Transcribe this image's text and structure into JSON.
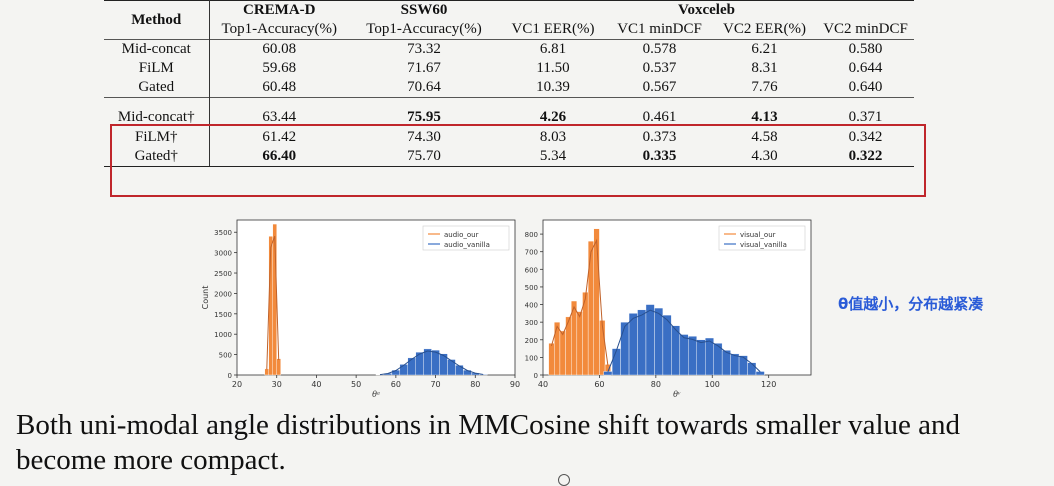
{
  "table": {
    "header_method": "Method",
    "groups": [
      "CREMA-D",
      "SSW60",
      "Voxceleb"
    ],
    "subheaders": [
      "Top1-Accuracy(%)",
      "Top1-Accuracy(%)",
      "VC1 EER(%)",
      "VC1 minDCF",
      "VC2 EER(%)",
      "VC2 minDCF"
    ],
    "rows": [
      {
        "method": "Mid-concat",
        "values": [
          "60.08",
          "73.32",
          "6.81",
          "0.578",
          "6.21",
          "0.580"
        ],
        "bold": [
          false,
          false,
          false,
          false,
          false,
          false
        ]
      },
      {
        "method": "FiLM",
        "values": [
          "59.68",
          "71.67",
          "11.50",
          "0.537",
          "8.31",
          "0.644"
        ],
        "bold": [
          false,
          false,
          false,
          false,
          false,
          false
        ]
      },
      {
        "method": "Gated",
        "values": [
          "60.48",
          "70.64",
          "10.39",
          "0.567",
          "7.76",
          "0.640"
        ],
        "bold": [
          false,
          false,
          false,
          false,
          false,
          false
        ]
      },
      {
        "method": "Mid-concat†",
        "values": [
          "63.44",
          "75.95",
          "4.26",
          "0.461",
          "4.13",
          "0.371"
        ],
        "bold": [
          false,
          true,
          true,
          false,
          true,
          false
        ]
      },
      {
        "method": "FiLM†",
        "values": [
          "61.42",
          "74.30",
          "8.03",
          "0.373",
          "4.58",
          "0.342"
        ],
        "bold": [
          false,
          false,
          false,
          false,
          false,
          false
        ]
      },
      {
        "method": "Gated†",
        "values": [
          "66.40",
          "75.70",
          "5.34",
          "0.335",
          "4.30",
          "0.322"
        ],
        "bold": [
          true,
          false,
          false,
          true,
          false,
          true
        ]
      }
    ]
  },
  "colors": {
    "highlight_box": "#c0262c",
    "our": "#f28a3c",
    "vanilla": "#3a6fc4",
    "note": "#2a5bd7"
  },
  "chart_data": [
    {
      "type": "bar",
      "title": "",
      "xlabel": "θᵃ",
      "ylabel": "Count",
      "xlim": [
        20,
        90
      ],
      "ylim": [
        0,
        3800
      ],
      "xticks": [
        20,
        30,
        40,
        50,
        60,
        70,
        80,
        90
      ],
      "yticks": [
        0,
        500,
        1000,
        1500,
        2000,
        2500,
        3000,
        3500
      ],
      "legend": [
        "audio_our",
        "audio_vanilla"
      ],
      "legend_position": "top-right",
      "series": [
        {
          "name": "audio_our",
          "x": [
            27.5,
            28.5,
            29.5,
            30.5
          ],
          "values": [
            150,
            3400,
            3700,
            400
          ]
        },
        {
          "name": "audio_vanilla",
          "x": [
            56,
            58,
            60,
            62,
            64,
            66,
            68,
            70,
            72,
            74,
            76,
            78,
            80,
            82
          ],
          "values": [
            10,
            40,
            120,
            260,
            420,
            560,
            640,
            610,
            520,
            380,
            240,
            120,
            50,
            15
          ]
        }
      ]
    },
    {
      "type": "bar",
      "title": "",
      "xlabel": "θᵛ",
      "ylabel": "",
      "xlim": [
        40,
        135
      ],
      "ylim": [
        0,
        880
      ],
      "xticks": [
        40,
        60,
        80,
        100,
        120
      ],
      "yticks": [
        0,
        100,
        200,
        300,
        400,
        500,
        600,
        700,
        800
      ],
      "legend": [
        "visual_our",
        "visual_vanilla"
      ],
      "legend_position": "top-right",
      "series": [
        {
          "name": "visual_our",
          "x": [
            43,
            45,
            47,
            49,
            51,
            53,
            55,
            57,
            59,
            61,
            63
          ],
          "values": [
            180,
            300,
            250,
            330,
            420,
            360,
            470,
            760,
            830,
            310,
            60
          ]
        },
        {
          "name": "visual_vanilla",
          "x": [
            63,
            66,
            69,
            72,
            75,
            78,
            81,
            84,
            87,
            90,
            93,
            96,
            99,
            102,
            105,
            108,
            111,
            114,
            117
          ],
          "values": [
            20,
            150,
            300,
            350,
            370,
            400,
            380,
            340,
            280,
            230,
            220,
            200,
            210,
            180,
            140,
            120,
            110,
            70,
            20
          ]
        }
      ]
    }
  ],
  "note": "θ值越小，分布越紧凑",
  "caption": "Both uni-modal angle distributions in MMCosine shift towards smaller value and become more compact."
}
